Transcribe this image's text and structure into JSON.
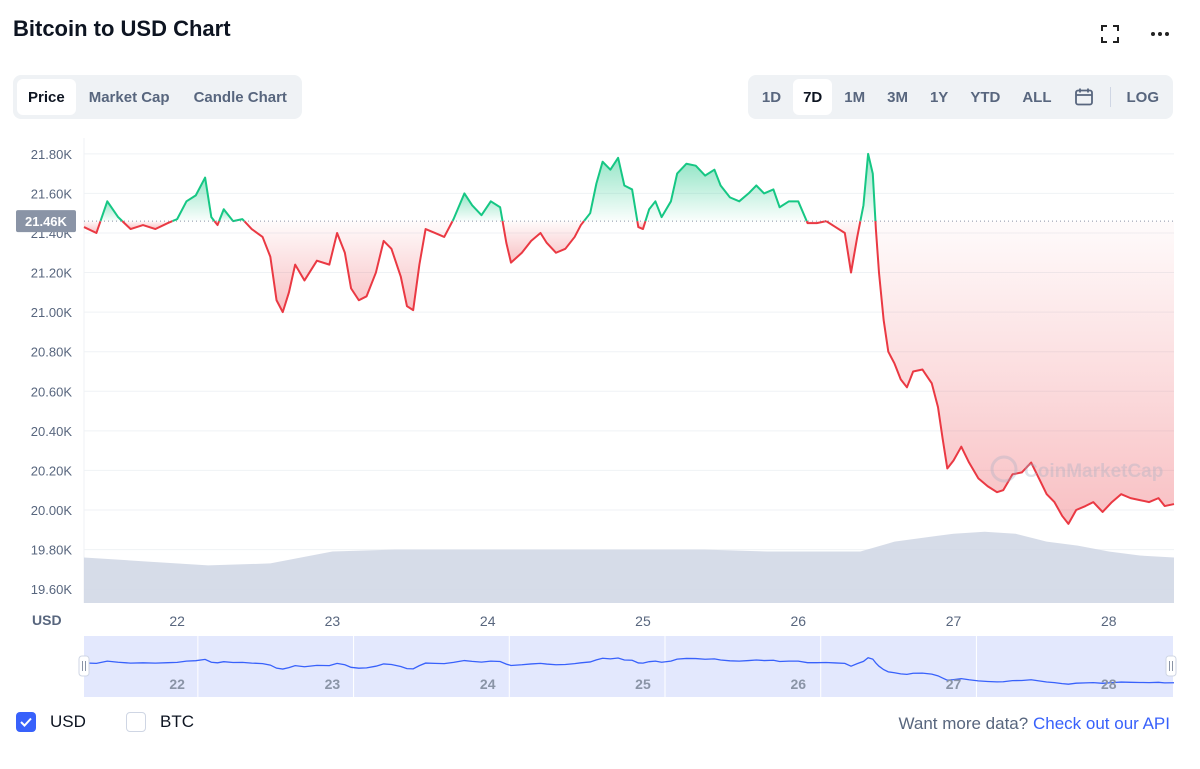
{
  "header": {
    "title": "Bitcoin to USD Chart",
    "fullscreen_icon": "fullscreen-icon",
    "more_icon": "more-horizontal-icon"
  },
  "chart_tabs": [
    {
      "label": "Price",
      "active": true
    },
    {
      "label": "Market Cap",
      "active": false
    },
    {
      "label": "Candle Chart",
      "active": false
    }
  ],
  "ranges": [
    {
      "label": "1D",
      "active": false
    },
    {
      "label": "7D",
      "active": true
    },
    {
      "label": "1M",
      "active": false
    },
    {
      "label": "3M",
      "active": false
    },
    {
      "label": "1Y",
      "active": false
    },
    {
      "label": "YTD",
      "active": false
    },
    {
      "label": "ALL",
      "active": false
    }
  ],
  "calendar_icon": "calendar-icon",
  "log_label": "LOG",
  "chart_data": {
    "type": "line",
    "currency_label": "USD",
    "baseline_value": 21460,
    "baseline_label": "21.46K",
    "colors": {
      "above": "#16c784",
      "below": "#ea3943",
      "volume": "#cfd6e4",
      "navigator": "#3861fb"
    },
    "ylim": [
      19530,
      21880
    ],
    "yticks": [
      {
        "v": 21800,
        "label": "21.80K"
      },
      {
        "v": 21600,
        "label": "21.60K"
      },
      {
        "v": 21400,
        "label": "21.40K"
      },
      {
        "v": 21200,
        "label": "21.20K"
      },
      {
        "v": 21000,
        "label": "21.00K"
      },
      {
        "v": 20800,
        "label": "20.80K"
      },
      {
        "v": 20600,
        "label": "20.60K"
      },
      {
        "v": 20400,
        "label": "20.40K"
      },
      {
        "v": 20200,
        "label": "20.20K"
      },
      {
        "v": 20000,
        "label": "20.00K"
      },
      {
        "v": 19800,
        "label": "19.80K"
      },
      {
        "v": 19600,
        "label": "19.60K"
      }
    ],
    "xlim": [
      21.4,
      28.42
    ],
    "xticks": [
      {
        "v": 22,
        "label": "22"
      },
      {
        "v": 23,
        "label": "23"
      },
      {
        "v": 24,
        "label": "24"
      },
      {
        "v": 25,
        "label": "25"
      },
      {
        "v": 26,
        "label": "26"
      },
      {
        "v": 27,
        "label": "27"
      },
      {
        "v": 28,
        "label": "28"
      }
    ],
    "series": [
      {
        "values": [
          [
            21.4,
            21430
          ],
          [
            21.48,
            21400
          ],
          [
            21.55,
            21560
          ],
          [
            21.62,
            21480
          ],
          [
            21.7,
            21420
          ],
          [
            21.78,
            21440
          ],
          [
            21.86,
            21420
          ],
          [
            21.94,
            21450
          ],
          [
            22.0,
            21470
          ],
          [
            22.06,
            21560
          ],
          [
            22.12,
            21590
          ],
          [
            22.18,
            21680
          ],
          [
            22.22,
            21480
          ],
          [
            22.26,
            21440
          ],
          [
            22.3,
            21520
          ],
          [
            22.36,
            21460
          ],
          [
            22.42,
            21470
          ],
          [
            22.48,
            21420
          ],
          [
            22.55,
            21380
          ],
          [
            22.6,
            21280
          ],
          [
            22.64,
            21060
          ],
          [
            22.68,
            21000
          ],
          [
            22.72,
            21100
          ],
          [
            22.76,
            21240
          ],
          [
            22.82,
            21160
          ],
          [
            22.9,
            21260
          ],
          [
            22.98,
            21240
          ],
          [
            23.03,
            21400
          ],
          [
            23.08,
            21300
          ],
          [
            23.12,
            21120
          ],
          [
            23.17,
            21060
          ],
          [
            23.22,
            21080
          ],
          [
            23.28,
            21200
          ],
          [
            23.33,
            21360
          ],
          [
            23.38,
            21320
          ],
          [
            23.44,
            21180
          ],
          [
            23.48,
            21030
          ],
          [
            23.52,
            21010
          ],
          [
            23.56,
            21240
          ],
          [
            23.6,
            21420
          ],
          [
            23.66,
            21400
          ],
          [
            23.72,
            21380
          ],
          [
            23.78,
            21470
          ],
          [
            23.85,
            21600
          ],
          [
            23.9,
            21540
          ],
          [
            23.96,
            21490
          ],
          [
            24.02,
            21560
          ],
          [
            24.08,
            21530
          ],
          [
            24.12,
            21350
          ],
          [
            24.15,
            21250
          ],
          [
            24.22,
            21300
          ],
          [
            24.28,
            21360
          ],
          [
            24.34,
            21400
          ],
          [
            24.38,
            21350
          ],
          [
            24.44,
            21300
          ],
          [
            24.5,
            21320
          ],
          [
            24.56,
            21380
          ],
          [
            24.6,
            21440
          ],
          [
            24.66,
            21500
          ],
          [
            24.7,
            21650
          ],
          [
            24.74,
            21760
          ],
          [
            24.79,
            21720
          ],
          [
            24.84,
            21780
          ],
          [
            24.88,
            21640
          ],
          [
            24.93,
            21620
          ],
          [
            24.97,
            21430
          ],
          [
            25.0,
            21420
          ],
          [
            25.04,
            21520
          ],
          [
            25.08,
            21560
          ],
          [
            25.12,
            21480
          ],
          [
            25.18,
            21560
          ],
          [
            25.22,
            21700
          ],
          [
            25.28,
            21750
          ],
          [
            25.34,
            21740
          ],
          [
            25.4,
            21690
          ],
          [
            25.46,
            21720
          ],
          [
            25.5,
            21640
          ],
          [
            25.56,
            21580
          ],
          [
            25.62,
            21560
          ],
          [
            25.68,
            21600
          ],
          [
            25.73,
            21640
          ],
          [
            25.78,
            21600
          ],
          [
            25.84,
            21620
          ],
          [
            25.88,
            21530
          ],
          [
            25.94,
            21560
          ],
          [
            26.0,
            21560
          ],
          [
            26.06,
            21450
          ],
          [
            26.12,
            21450
          ],
          [
            26.18,
            21460
          ],
          [
            26.24,
            21430
          ],
          [
            26.3,
            21400
          ],
          [
            26.34,
            21200
          ],
          [
            26.38,
            21380
          ],
          [
            26.42,
            21540
          ],
          [
            26.45,
            21800
          ],
          [
            26.48,
            21700
          ],
          [
            26.5,
            21420
          ],
          [
            26.52,
            21200
          ],
          [
            26.55,
            20960
          ],
          [
            26.58,
            20800
          ],
          [
            26.62,
            20740
          ],
          [
            26.66,
            20660
          ],
          [
            26.7,
            20620
          ],
          [
            26.74,
            20700
          ],
          [
            26.8,
            20710
          ],
          [
            26.86,
            20640
          ],
          [
            26.9,
            20520
          ],
          [
            26.93,
            20360
          ],
          [
            26.96,
            20210
          ],
          [
            27.0,
            20250
          ],
          [
            27.05,
            20320
          ],
          [
            27.1,
            20240
          ],
          [
            27.16,
            20160
          ],
          [
            27.22,
            20120
          ],
          [
            27.28,
            20090
          ],
          [
            27.32,
            20100
          ],
          [
            27.38,
            20180
          ],
          [
            27.44,
            20190
          ],
          [
            27.5,
            20240
          ],
          [
            27.55,
            20160
          ],
          [
            27.6,
            20080
          ],
          [
            27.65,
            20040
          ],
          [
            27.7,
            19970
          ],
          [
            27.74,
            19930
          ],
          [
            27.79,
            20000
          ],
          [
            27.85,
            20020
          ],
          [
            27.9,
            20040
          ],
          [
            27.96,
            19990
          ],
          [
            28.02,
            20040
          ],
          [
            28.08,
            20080
          ],
          [
            28.14,
            20060
          ],
          [
            28.2,
            20050
          ],
          [
            28.26,
            20040
          ],
          [
            28.32,
            20060
          ],
          [
            28.36,
            20020
          ],
          [
            28.42,
            20030
          ]
        ]
      }
    ],
    "volume": [
      [
        21.4,
        19760
      ],
      [
        21.8,
        19740
      ],
      [
        22.2,
        19720
      ],
      [
        22.6,
        19730
      ],
      [
        23.0,
        19790
      ],
      [
        23.4,
        19800
      ],
      [
        23.8,
        19800
      ],
      [
        24.2,
        19800
      ],
      [
        24.6,
        19800
      ],
      [
        25.0,
        19800
      ],
      [
        25.4,
        19800
      ],
      [
        25.8,
        19790
      ],
      [
        26.1,
        19790
      ],
      [
        26.4,
        19790
      ],
      [
        26.62,
        19840
      ],
      [
        26.9,
        19870
      ],
      [
        27.0,
        19880
      ],
      [
        27.2,
        19890
      ],
      [
        27.4,
        19880
      ],
      [
        27.6,
        19840
      ],
      [
        27.8,
        19820
      ],
      [
        28.0,
        19790
      ],
      [
        28.2,
        19770
      ],
      [
        28.42,
        19760
      ]
    ],
    "navigator_labels": [
      "22",
      "23",
      "24",
      "25",
      "26",
      "27",
      "28"
    ],
    "watermark": "CoinMarketCap"
  },
  "footer": {
    "usd_label": "USD",
    "btc_label": "BTC",
    "more_text": "Want more data?",
    "api_link": "Check out our API"
  }
}
